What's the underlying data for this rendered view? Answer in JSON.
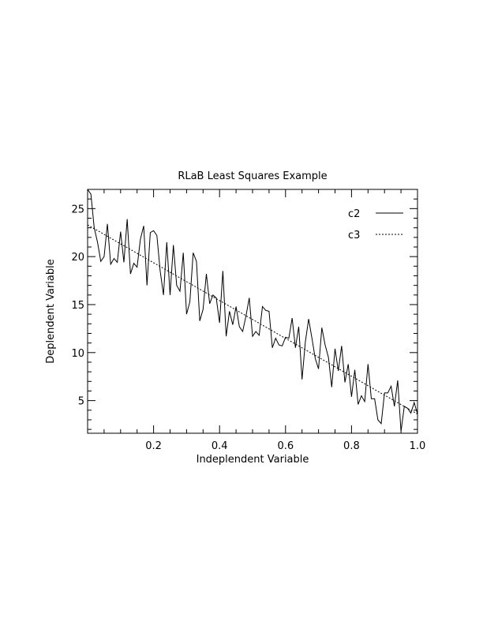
{
  "chart_data": {
    "type": "line",
    "title": "RLaB Least Squares Example",
    "xlabel": "Indeplendent Variable",
    "ylabel": "Deplendent Variable",
    "xlim": [
      0.0,
      1.0
    ],
    "ylim": [
      1.6,
      27.0
    ],
    "xticks": [
      {
        "value": 0.2,
        "label": "0.2"
      },
      {
        "value": 0.4,
        "label": "0.4"
      },
      {
        "value": 0.6,
        "label": "0.6"
      },
      {
        "value": 0.8,
        "label": "0.8"
      },
      {
        "value": 1.0,
        "label": "1.0"
      }
    ],
    "yticks": [
      {
        "value": 5,
        "label": "5"
      },
      {
        "value": 10,
        "label": "10"
      },
      {
        "value": 15,
        "label": "15"
      },
      {
        "value": 20,
        "label": "20"
      },
      {
        "value": 25,
        "label": "25"
      }
    ],
    "grid": false,
    "legend_position": "top-right",
    "series": [
      {
        "name": "c2",
        "style": "solid",
        "color": "#000000",
        "x": [
          0.0,
          0.01,
          0.02,
          0.03,
          0.04,
          0.05,
          0.06,
          0.07,
          0.08,
          0.09,
          0.1,
          0.11,
          0.12,
          0.13,
          0.14,
          0.15,
          0.16,
          0.17,
          0.18,
          0.19,
          0.2,
          0.21,
          0.22,
          0.23,
          0.24,
          0.25,
          0.26,
          0.27,
          0.28,
          0.29,
          0.3,
          0.31,
          0.32,
          0.33,
          0.34,
          0.35,
          0.36,
          0.37,
          0.38,
          0.39,
          0.4,
          0.41,
          0.42,
          0.43,
          0.44,
          0.45,
          0.46,
          0.47,
          0.48,
          0.49,
          0.5,
          0.51,
          0.52,
          0.53,
          0.54,
          0.55,
          0.56,
          0.57,
          0.58,
          0.59,
          0.6,
          0.61,
          0.62,
          0.63,
          0.64,
          0.65,
          0.66,
          0.67,
          0.68,
          0.69,
          0.7,
          0.71,
          0.72,
          0.73,
          0.74,
          0.75,
          0.76,
          0.77,
          0.78,
          0.79,
          0.8,
          0.81,
          0.82,
          0.83,
          0.84,
          0.85,
          0.86,
          0.87,
          0.88,
          0.89,
          0.9,
          0.91,
          0.92,
          0.93,
          0.94,
          0.95,
          0.96,
          0.97,
          0.98,
          0.99,
          1.0
        ],
        "y": [
          27.0,
          26.5,
          23.0,
          21.5,
          19.5,
          20.0,
          23.4,
          19.2,
          19.8,
          19.4,
          22.6,
          19.4,
          23.9,
          18.2,
          19.3,
          18.9,
          21.8,
          23.2,
          17.0,
          22.5,
          22.7,
          22.2,
          18.5,
          16.0,
          21.5,
          16.0,
          21.2,
          17.0,
          16.4,
          20.4,
          14.0,
          15.3,
          20.4,
          19.5,
          13.3,
          14.5,
          18.2,
          15.1,
          16.0,
          15.7,
          13.1,
          18.5,
          11.7,
          14.3,
          12.9,
          14.8,
          12.7,
          12.2,
          13.8,
          15.7,
          11.7,
          12.2,
          11.8,
          14.8,
          14.4,
          14.3,
          10.5,
          11.5,
          10.8,
          10.7,
          11.6,
          11.5,
          13.6,
          10.5,
          12.7,
          7.2,
          11.1,
          13.5,
          11.5,
          9.4,
          8.3,
          12.6,
          10.8,
          9.5,
          6.4,
          10.4,
          8.1,
          10.7,
          6.9,
          8.8,
          5.4,
          8.2,
          4.6,
          5.5,
          4.9,
          8.8,
          5.2,
          5.2,
          3.0,
          2.6,
          5.8,
          5.8,
          6.5,
          4.4,
          7.1,
          1.8,
          4.4,
          4.2,
          3.7,
          4.8,
          3.6
        ]
      },
      {
        "name": "c3",
        "style": "dashed",
        "color": "#000000",
        "x": [
          0.0,
          1.0
        ],
        "y": [
          23.3,
          3.6
        ]
      }
    ]
  }
}
